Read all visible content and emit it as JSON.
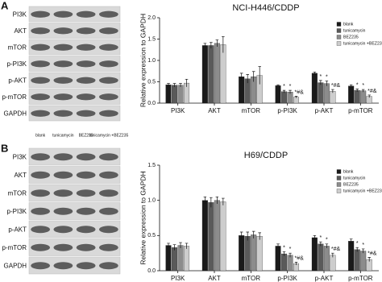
{
  "blots": [
    {
      "panel": "A",
      "rows": [
        "PI3K",
        "AKT",
        "mTOR",
        "p-PI3K",
        "p-AKT",
        "p-mTOR",
        "GAPDH"
      ]
    },
    {
      "panel": "B",
      "columns": [
        "blank",
        "tunicamycin",
        "BEZ235",
        "tunicamycin +BEZ235"
      ],
      "rows": [
        "PI3K",
        "AKT",
        "mTOR",
        "p-PI3K",
        "p-AKT",
        "p-mTOR",
        "GAPDH"
      ]
    }
  ],
  "chart_data": [
    {
      "type": "bar",
      "title": "NCI-H446/CDDP",
      "y_label": "Relative expression  to GAPDH",
      "categories": [
        "PI3K",
        "AKT",
        "mTOR",
        "p-PI3K",
        "p-AKT",
        "p-mTOR"
      ],
      "ylim": [
        0,
        2.0
      ],
      "yticks": [
        {
          "value": 0,
          "label": "0.0"
        },
        {
          "value": 0.5,
          "label": "0.5"
        },
        {
          "value": 1.0,
          "label": "1.0"
        },
        {
          "value": 1.5,
          "label": "1.5"
        },
        {
          "value": 2.0,
          "label": "2.0"
        }
      ],
      "series": [
        {
          "name": "blank",
          "color": "#1a1a1a",
          "values": [
            0.43,
            1.35,
            0.62,
            0.41,
            0.7,
            0.4
          ],
          "errors": [
            0.03,
            0.05,
            0.08,
            0.02,
            0.03,
            0.03
          ],
          "markers": [
            null,
            null,
            null,
            null,
            null,
            null
          ]
        },
        {
          "name": "tunicamycin",
          "color": "#5a5a5a",
          "values": [
            0.42,
            1.35,
            0.57,
            0.27,
            0.48,
            0.3
          ],
          "errors": [
            0.04,
            0.07,
            0.1,
            0.03,
            0.05,
            0.03
          ],
          "markers": [
            null,
            null,
            null,
            "*",
            "*",
            "*"
          ]
        },
        {
          "name": "BEZ235",
          "color": "#8c8c8c",
          "values": [
            0.42,
            1.4,
            0.62,
            0.26,
            0.46,
            0.29
          ],
          "errors": [
            0.04,
            0.08,
            0.12,
            0.04,
            0.06,
            0.03
          ],
          "markers": [
            null,
            null,
            null,
            "*",
            "*",
            "*"
          ]
        },
        {
          "name": "tunicamycin +BEZ235",
          "color": "#cdcdcd",
          "values": [
            0.47,
            1.37,
            0.65,
            0.14,
            0.28,
            0.16
          ],
          "errors": [
            0.09,
            0.19,
            0.21,
            0.02,
            0.04,
            0.03
          ],
          "markers": [
            null,
            null,
            null,
            "*#&",
            "*#&",
            "*#&"
          ]
        }
      ]
    },
    {
      "type": "bar",
      "title": "H69/CDDP",
      "y_label": "Relative expression  to GAPDH",
      "categories": [
        "PI3K",
        "AKT",
        "mTOR",
        "p-PI3K",
        "p-AKT",
        "p-mTOR"
      ],
      "ylim": [
        0,
        1.5
      ],
      "yticks": [
        {
          "value": 0,
          "label": "0.0"
        },
        {
          "value": 0.5,
          "label": "0.5"
        },
        {
          "value": 1.0,
          "label": "1.0"
        },
        {
          "value": 1.5,
          "label": "1.5"
        }
      ],
      "series": [
        {
          "name": "blank",
          "color": "#1a1a1a",
          "values": [
            0.36,
            1.0,
            0.5,
            0.35,
            0.47,
            0.42
          ],
          "errors": [
            0.03,
            0.05,
            0.05,
            0.03,
            0.03,
            0.03
          ],
          "markers": [
            null,
            null,
            null,
            null,
            null,
            null
          ]
        },
        {
          "name": "tunicamycin",
          "color": "#5a5a5a",
          "values": [
            0.33,
            0.97,
            0.49,
            0.24,
            0.38,
            0.3
          ],
          "errors": [
            0.04,
            0.07,
            0.06,
            0.03,
            0.03,
            0.03
          ],
          "markers": [
            null,
            null,
            null,
            "*",
            "*",
            "*"
          ]
        },
        {
          "name": "BEZ235",
          "color": "#8c8c8c",
          "values": [
            0.36,
            1.0,
            0.51,
            0.22,
            0.35,
            0.28
          ],
          "errors": [
            0.04,
            0.05,
            0.05,
            0.03,
            0.03,
            0.03
          ],
          "markers": [
            null,
            null,
            null,
            "*",
            "*",
            "*"
          ]
        },
        {
          "name": "tunicamycin +BEZ235",
          "color": "#cdcdcd",
          "values": [
            0.35,
            0.98,
            0.49,
            0.1,
            0.22,
            0.16
          ],
          "errors": [
            0.04,
            0.05,
            0.05,
            0.02,
            0.03,
            0.03
          ],
          "markers": [
            null,
            null,
            null,
            "*#&",
            "*#&",
            "*#&"
          ]
        }
      ]
    }
  ]
}
